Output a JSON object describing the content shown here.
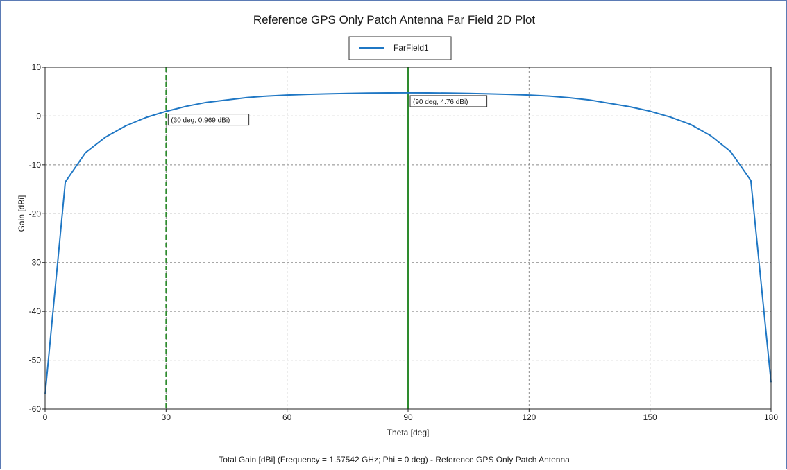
{
  "chart_data": {
    "type": "line",
    "title": "Reference GPS Only Patch Antenna Far Field 2D Plot",
    "xlabel": "Theta [deg]",
    "ylabel": "Gain [dBi]",
    "caption": "Total Gain [dBi] (Frequency = 1.57542 GHz; Phi = 0 deg) - Reference GPS Only Patch Antenna",
    "xlim": [
      0,
      180
    ],
    "ylim": [
      -60,
      10
    ],
    "xticks": [
      0,
      30,
      60,
      90,
      120,
      150,
      180
    ],
    "yticks": [
      -60,
      -50,
      -40,
      -30,
      -20,
      -10,
      0,
      10
    ],
    "grid": true,
    "legend_position": "top-center",
    "series": [
      {
        "name": "FarField1",
        "color": "#1f77c4",
        "x": [
          0,
          5,
          10,
          15,
          20,
          25,
          30,
          35,
          40,
          45,
          50,
          55,
          60,
          65,
          70,
          75,
          80,
          85,
          90,
          95,
          100,
          105,
          110,
          115,
          120,
          125,
          130,
          135,
          140,
          145,
          150,
          155,
          160,
          165,
          170,
          175,
          180
        ],
        "y": [
          -57,
          -13.5,
          -7.5,
          -4.3,
          -2.0,
          -0.3,
          0.969,
          2.0,
          2.8,
          3.3,
          3.8,
          4.1,
          4.3,
          4.45,
          4.55,
          4.65,
          4.7,
          4.74,
          4.76,
          4.74,
          4.7,
          4.65,
          4.55,
          4.45,
          4.3,
          4.1,
          3.75,
          3.3,
          2.6,
          1.9,
          1.0,
          -0.2,
          -1.7,
          -4.0,
          -7.3,
          -13.2,
          -54.5
        ]
      }
    ],
    "markers": [
      {
        "x": 30,
        "style": "dashed",
        "color": "#2e8b2e",
        "label": "(30 deg, 0.969 dBi)",
        "y": 0.969
      },
      {
        "x": 90,
        "style": "solid",
        "color": "#2e8b2e",
        "label": "(90 deg, 4.76 dBi)",
        "y": 4.76
      }
    ]
  }
}
